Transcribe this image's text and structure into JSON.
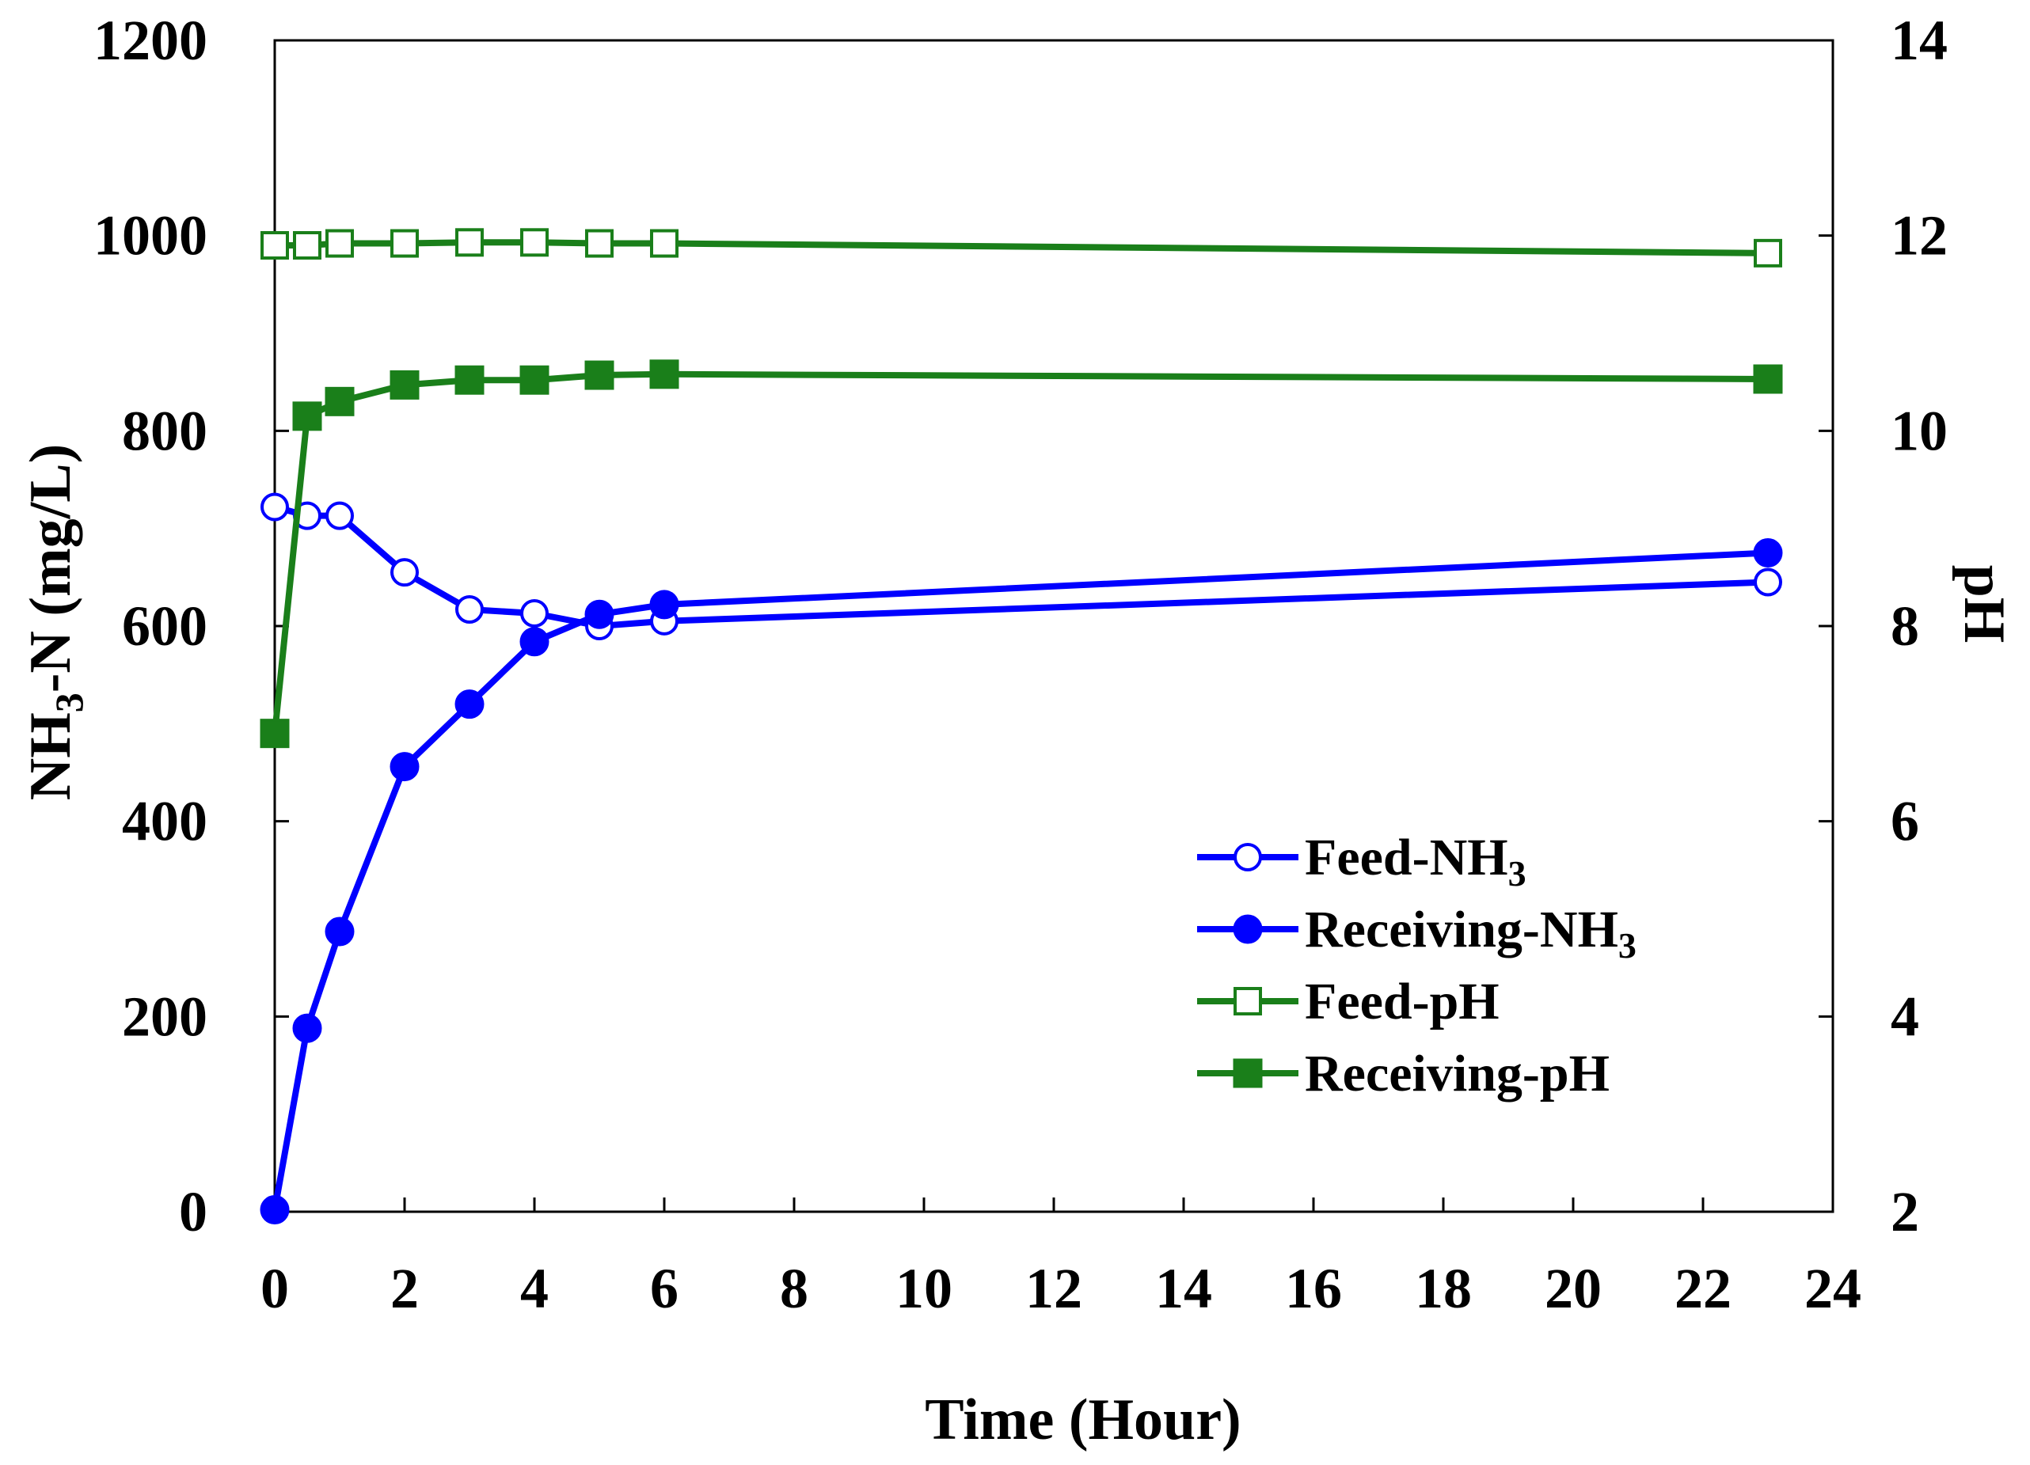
{
  "chart_data": {
    "type": "line",
    "title": "",
    "xlabel": "Time (Hour)",
    "ylabel_left": {
      "main": "NH",
      "sub": "3",
      "rest": "-N (mg/L)"
    },
    "ylabel_right": "pH",
    "xlim": [
      0,
      24
    ],
    "ylim_left": [
      0,
      1200
    ],
    "ylim_right": [
      2,
      14
    ],
    "grid": false,
    "legend_position": "lower-right",
    "x_ticks": [
      "0",
      "2",
      "4",
      "6",
      "8",
      "10",
      "12",
      "14",
      "16",
      "18",
      "20",
      "22",
      "24"
    ],
    "y_left_ticks": [
      "0",
      "200",
      "400",
      "600",
      "800",
      "1000",
      "1200"
    ],
    "y_right_ticks": [
      "2",
      "4",
      "6",
      "8",
      "10",
      "12",
      "14"
    ],
    "series": [
      {
        "name": "Feed-NH3",
        "label_main": "Feed-NH",
        "label_sub": "3",
        "axis": "left",
        "color": "#0000FF",
        "marker": "open-circle",
        "x": [
          0,
          0.5,
          1,
          2,
          3,
          4,
          5,
          6,
          23
        ],
        "values": [
          722,
          713,
          713,
          655,
          617,
          613,
          600,
          605,
          645
        ]
      },
      {
        "name": "Receiving-NH3",
        "label_main": "Receiving-NH",
        "label_sub": "3",
        "axis": "left",
        "color": "#0000FF",
        "marker": "filled-circle",
        "x": [
          0,
          0.5,
          1,
          2,
          3,
          4,
          5,
          6,
          23
        ],
        "values": [
          2,
          188,
          287,
          456,
          520,
          584,
          612,
          622,
          675
        ]
      },
      {
        "name": "Feed-pH",
        "label_main": "Feed-pH",
        "label_sub": "",
        "axis": "right",
        "color": "#1A7F1A",
        "marker": "open-square",
        "x": [
          0,
          0.5,
          1,
          2,
          3,
          4,
          5,
          6,
          23
        ],
        "values": [
          11.9,
          11.9,
          11.92,
          11.92,
          11.93,
          11.93,
          11.92,
          11.92,
          11.82
        ]
      },
      {
        "name": "Receiving-pH",
        "label_main": "Receiving-pH",
        "label_sub": "",
        "axis": "right",
        "color": "#1A7F1A",
        "marker": "filled-square",
        "x": [
          0,
          0.5,
          1,
          2,
          3,
          4,
          5,
          6,
          23
        ],
        "values": [
          6.9,
          10.15,
          10.3,
          10.47,
          10.52,
          10.52,
          10.57,
          10.58,
          10.53
        ]
      }
    ]
  }
}
